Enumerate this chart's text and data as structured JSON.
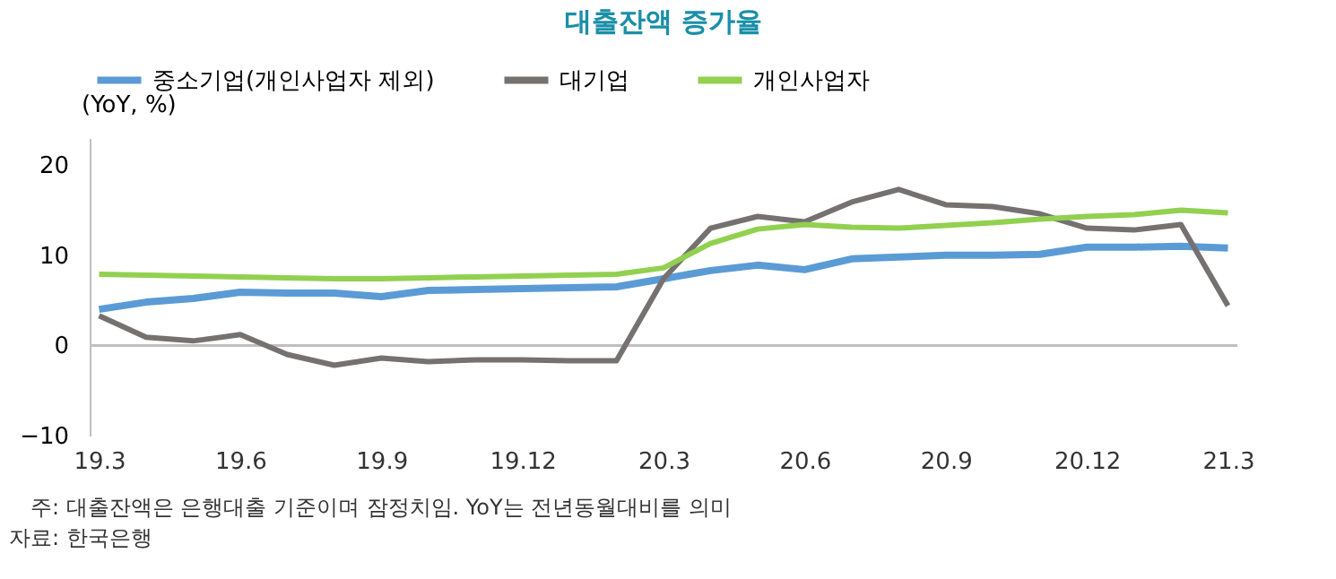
{
  "chart_data": {
    "type": "line",
    "title": "대출잔액 증가율",
    "ylabel": "(YoY, %)",
    "categories": [
      "19.3",
      null,
      null,
      "19.6",
      null,
      null,
      "19.9",
      null,
      null,
      "19.12",
      null,
      null,
      "20.3",
      null,
      null,
      "20.6",
      null,
      null,
      "20.9",
      null,
      null,
      "20.12",
      null,
      null,
      "21.3"
    ],
    "series": [
      {
        "name": "중소기업(개인사업자 제외)",
        "color": "#5b9bd5",
        "values": [
          4.0,
          4.8,
          5.2,
          5.9,
          5.8,
          5.8,
          5.4,
          6.1,
          6.2,
          6.3,
          6.4,
          6.5,
          7.4,
          8.3,
          8.9,
          8.4,
          9.6,
          9.8,
          10.0,
          10.0,
          10.1,
          10.9,
          10.9,
          11.0,
          10.8
        ]
      },
      {
        "name": "대기업",
        "color": "#767171",
        "values": [
          3.3,
          0.9,
          0.5,
          1.2,
          -1.0,
          -2.2,
          -1.4,
          -1.8,
          -1.6,
          -1.6,
          -1.7,
          -1.7,
          7.4,
          13.0,
          14.3,
          13.7,
          15.9,
          17.3,
          15.6,
          15.4,
          14.6,
          13.0,
          12.8,
          13.4,
          4.4
        ]
      },
      {
        "name": "개인사업자",
        "color": "#92d050",
        "values": [
          7.9,
          7.8,
          7.7,
          7.6,
          7.5,
          7.4,
          7.4,
          7.5,
          7.6,
          7.7,
          7.8,
          7.9,
          8.6,
          11.3,
          12.9,
          13.4,
          13.1,
          13.0,
          13.3,
          13.6,
          14.0,
          14.3,
          14.5,
          15.0,
          14.7
        ]
      }
    ],
    "ylim": [
      -10,
      23
    ],
    "yticks": [
      -10,
      0,
      10,
      20
    ],
    "grid": false,
    "legend": "top",
    "ref_lines": [
      {
        "axis": "y",
        "value": 0,
        "color": "#bfbfbf"
      }
    ],
    "annotations": [
      "주: 대출잔액은 은행대출 기준이며 잠정치임. YoY는 전년동월대비를 의미",
      "자료: 한국은행"
    ]
  }
}
